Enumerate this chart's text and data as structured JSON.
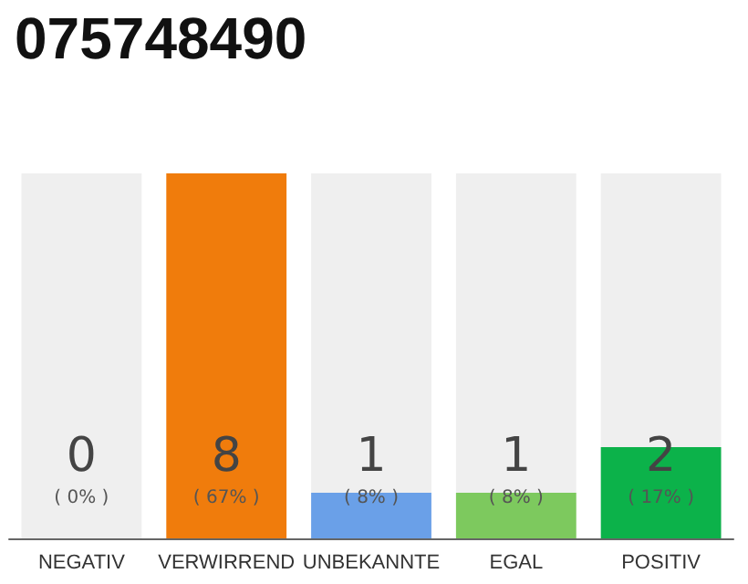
{
  "chart_data": {
    "type": "bar",
    "title": "075748490",
    "categories": [
      "NEGATIV",
      "VERWIRREND",
      "UNBEKANNTE",
      "EGAL",
      "POSITIV"
    ],
    "values": [
      0,
      8,
      1,
      1,
      2
    ],
    "colors": [
      "#f07c0c",
      "#f07c0c",
      "#6aa0e8",
      "#7dc95e",
      "#0cb24a"
    ],
    "value_labels": [
      "0\n( 0% )",
      "8\n( 67% )",
      "1\n( 8% )",
      "1\n( 8% )",
      "2\n( 17% )"
    ],
    "bands": [
      {
        "axis": "x",
        "from": "NEGATIV",
        "to": "NEGATIV",
        "color": "#efefef"
      },
      {
        "axis": "x",
        "from": "UNBEKANNTE",
        "to": "UNBEKANNTE",
        "color": "#efefef"
      },
      {
        "axis": "x",
        "from": "EGAL",
        "to": "EGAL",
        "color": "#efefef"
      },
      {
        "axis": "x",
        "from": "POSITIV",
        "to": "POSITIV",
        "color": "#efefef"
      }
    ]
  }
}
